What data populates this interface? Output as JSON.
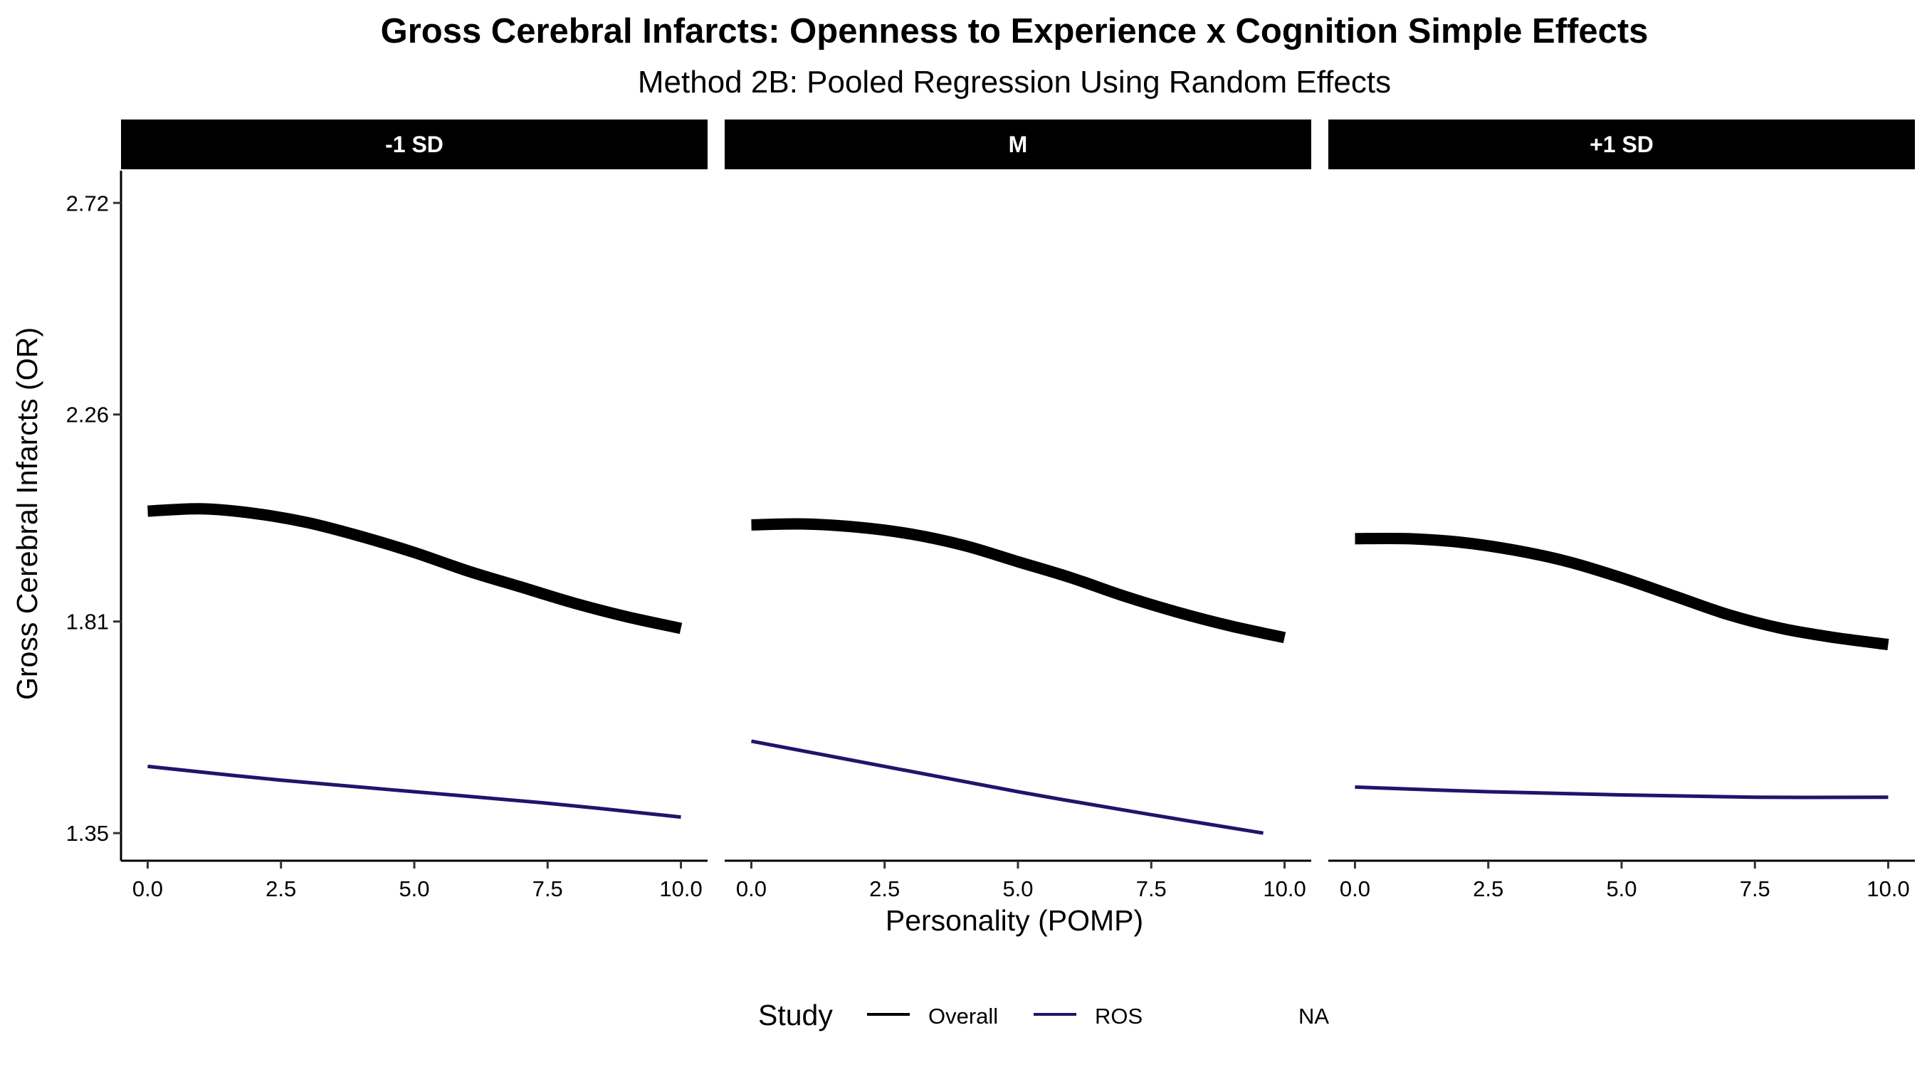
{
  "chart_data": {
    "type": "line",
    "title": "Gross Cerebral Infarcts: Openness to Experience x Cognition Simple Effects",
    "subtitle": "Method 2B: Pooled Regression Using Random Effects",
    "xlabel": "Personality (POMP)",
    "ylabel": "Gross Cerebral Infarcts (OR)",
    "xlim": [
      -0.5,
      10.5
    ],
    "ylim": [
      1.29,
      2.79
    ],
    "x_ticks": [
      0.0,
      2.5,
      5.0,
      7.5,
      10.0
    ],
    "x_tick_labels": [
      "0.0",
      "2.5",
      "5.0",
      "7.5",
      "10.0"
    ],
    "y_ticks": [
      1.35,
      1.81,
      2.26,
      2.72
    ],
    "y_tick_labels": [
      "1.35",
      "1.81",
      "2.26",
      "2.72"
    ],
    "grid": false,
    "legend": {
      "title": "Study",
      "position": "bottom",
      "entries": [
        {
          "label": "Overall",
          "color": "#000000"
        },
        {
          "label": "ROS",
          "color": "#24126b"
        },
        {
          "label": "NA",
          "color": ""
        }
      ]
    },
    "panels": [
      {
        "strip_label": "-1 SD",
        "series": [
          {
            "name": "Overall",
            "color": "#000000",
            "x": [
              0,
              1,
              2,
              3,
              4,
              5,
              6,
              7,
              8,
              9,
              10
            ],
            "y": [
              2.05,
              2.055,
              2.045,
              2.025,
              1.995,
              1.96,
              1.92,
              1.885,
              1.85,
              1.82,
              1.795
            ]
          },
          {
            "name": "ROS",
            "color": "#24126b",
            "x": [
              0,
              2.5,
              5,
              7.5,
              10
            ],
            "y": [
              1.495,
              1.465,
              1.44,
              1.415,
              1.385
            ]
          }
        ]
      },
      {
        "strip_label": "M",
        "series": [
          {
            "name": "Overall",
            "color": "#000000",
            "x": [
              0,
              1,
              2,
              3,
              4,
              5,
              6,
              7,
              8,
              9,
              10
            ],
            "y": [
              2.02,
              2.022,
              2.015,
              2.0,
              1.975,
              1.94,
              1.905,
              1.865,
              1.83,
              1.8,
              1.775
            ]
          },
          {
            "name": "ROS",
            "color": "#24126b",
            "x": [
              0,
              2.5,
              5,
              7.5,
              9.6
            ],
            "y": [
              1.55,
              1.495,
              1.44,
              1.39,
              1.35
            ]
          }
        ]
      },
      {
        "strip_label": "+1 SD",
        "series": [
          {
            "name": "Overall",
            "color": "#000000",
            "x": [
              0,
              1,
              2,
              3,
              4,
              5,
              6,
              7,
              8,
              9,
              10
            ],
            "y": [
              1.99,
              1.99,
              1.982,
              1.965,
              1.94,
              1.905,
              1.865,
              1.825,
              1.795,
              1.775,
              1.76
            ]
          },
          {
            "name": "ROS",
            "color": "#24126b",
            "x": [
              0,
              2.5,
              5,
              7.5,
              10
            ],
            "y": [
              1.45,
              1.44,
              1.433,
              1.428,
              1.428
            ]
          }
        ]
      }
    ]
  }
}
